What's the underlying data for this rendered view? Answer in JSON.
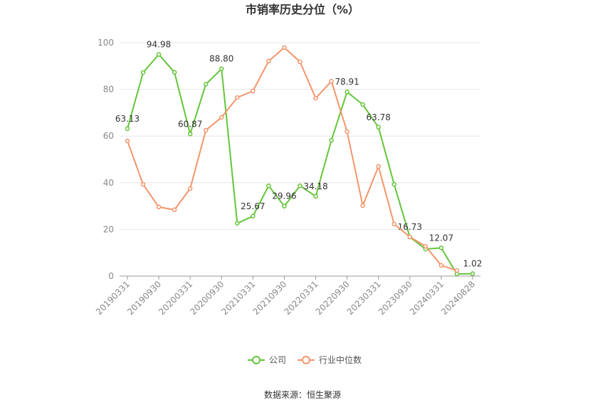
{
  "chart_data": {
    "type": "line",
    "title": "市销率历史分位（%）",
    "categories": [
      "20190331",
      null,
      "20190930",
      null,
      "20200331",
      null,
      "20200930",
      null,
      "20210331",
      null,
      "20210930",
      null,
      "20220331",
      null,
      "20220930",
      null,
      "20230331",
      null,
      "20230930",
      null,
      "20240331",
      null,
      "20240828"
    ],
    "series": [
      {
        "name": "公司",
        "color": "#64c53a",
        "values": [
          63.13,
          87.2,
          94.98,
          87.3,
          60.87,
          82.2,
          88.8,
          22.6,
          25.67,
          38.7,
          29.96,
          38.7,
          34.18,
          58.2,
          78.91,
          73.5,
          63.78,
          39.3,
          16.73,
          11.6,
          12.07,
          0.9,
          1.02
        ],
        "value_labels": [
          "63.13",
          null,
          "94.98",
          null,
          "60.87",
          null,
          "88.80",
          null,
          "25.67",
          null,
          "29.96",
          null,
          "34.18",
          null,
          "78.91",
          null,
          "63.78",
          null,
          "16.73",
          null,
          "12.07",
          null,
          "1.02"
        ]
      },
      {
        "name": "行业中位数",
        "color": "#f4956b",
        "values": [
          57.9,
          39.3,
          29.6,
          28.4,
          37.5,
          62.5,
          68.0,
          76.5,
          79.3,
          92.1,
          97.9,
          91.8,
          76.2,
          83.5,
          61.9,
          30.2,
          47.0,
          22.3,
          16.8,
          12.8,
          4.6,
          2.4,
          null
        ]
      }
    ],
    "ylim": [
      0,
      100
    ],
    "yticks": [
      0,
      20,
      40,
      60,
      80,
      100
    ],
    "grid": true,
    "legend": "bottom",
    "source": "数据来源：恒生聚源"
  }
}
